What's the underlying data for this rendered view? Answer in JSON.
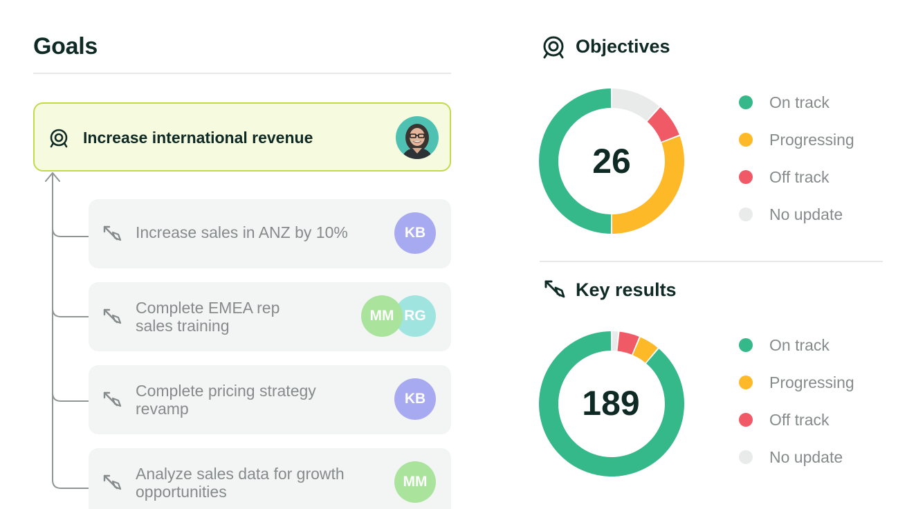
{
  "goals": {
    "title": "Goals",
    "parent": {
      "label": "Increase international revenue",
      "icon": "target-icon"
    },
    "children": [
      {
        "label": "Increase sales in ANZ by 10%",
        "icon": "key-result-icon",
        "assignees": [
          "KB"
        ]
      },
      {
        "label": "Complete EMEA rep sales training",
        "icon": "key-result-icon",
        "assignees": [
          "MM",
          "RG"
        ]
      },
      {
        "label": "Complete pricing strategy revamp",
        "icon": "key-result-icon",
        "assignees": [
          "KB"
        ]
      },
      {
        "label": "Analyze sales data for growth opportunities",
        "icon": "key-result-icon",
        "assignees": [
          "MM"
        ]
      }
    ]
  },
  "assignee_colors": {
    "KB": "#a7aaf0",
    "MM": "#a9e39c",
    "RG": "#a0e4e0"
  },
  "status_colors": {
    "on_track": "#35b88a",
    "progressing": "#fdb927",
    "off_track": "#f05a66",
    "no_update": "#e9ebeb"
  },
  "objectives": {
    "title": "Objectives",
    "icon": "target-icon",
    "total": "26",
    "legend": [
      "On track",
      "Progressing",
      "Off track",
      "No update"
    ],
    "breakdown": {
      "on_track": 13,
      "progressing": 8,
      "off_track": 2,
      "no_update": 3
    }
  },
  "key_results": {
    "title": "Key results",
    "icon": "key-result-icon",
    "total": "189",
    "legend": [
      "On track",
      "Progressing",
      "Off track",
      "No update"
    ],
    "breakdown": {
      "on_track": 168,
      "progressing": 9,
      "off_track": 9,
      "no_update": 3
    }
  }
}
